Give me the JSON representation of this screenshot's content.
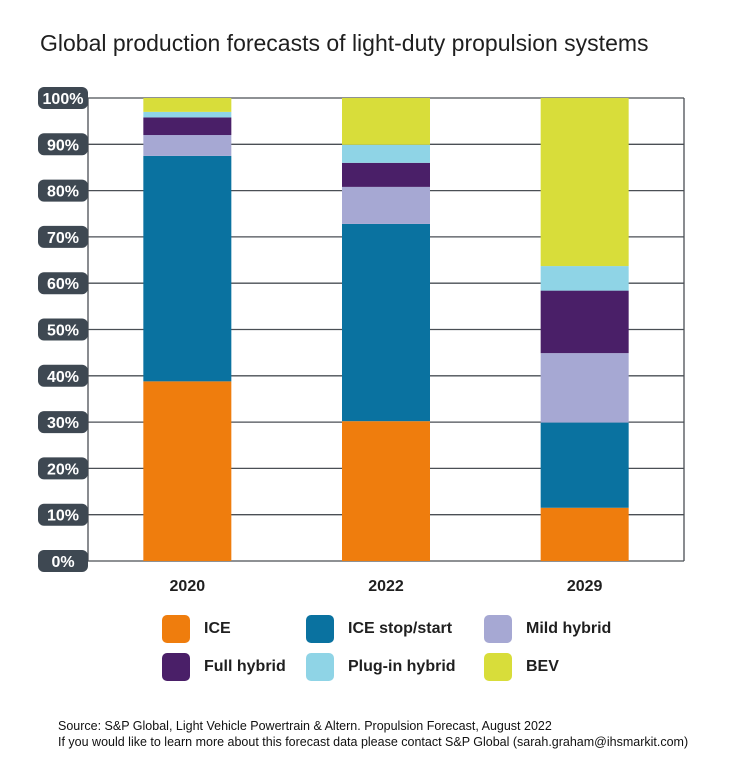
{
  "title": "Global production forecasts of light-duty propulsion systems",
  "source_line1": "Source: S&P Global, Light Vehicle Powertrain & Altern. Propulsion Forecast, August 2022",
  "source_line2": "If you would like to learn more about this forecast data please contact S&P Global (sarah.graham@ihsmarkit.com)",
  "chart_data": {
    "type": "bar",
    "stacked": true,
    "title": "Global production forecasts of light-duty propulsion systems",
    "categories": [
      "2020",
      "2022",
      "2029"
    ],
    "yticks": [
      "0%",
      "10%",
      "20%",
      "30%",
      "40%",
      "50%",
      "60%",
      "70%",
      "80%",
      "90%",
      "100%"
    ],
    "ylim": [
      0,
      100
    ],
    "grid": true,
    "legend_position": "bottom",
    "series": [
      {
        "name": "ICE",
        "color": "#ef7d0d",
        "values": [
          38.8,
          30.2,
          11.5
        ]
      },
      {
        "name": "ICE stop/start",
        "color": "#0a72a0",
        "values": [
          48.7,
          42.6,
          18.4
        ]
      },
      {
        "name": "Mild hybrid",
        "color": "#a6a8d3",
        "values": [
          4.5,
          8.0,
          15.0
        ]
      },
      {
        "name": "Full hybrid",
        "color": "#4a1f68",
        "values": [
          3.8,
          5.2,
          13.5
        ]
      },
      {
        "name": "Plug-in hybrid",
        "color": "#8fd4e6",
        "values": [
          1.2,
          3.9,
          5.3
        ]
      },
      {
        "name": "BEV",
        "color": "#d8dd3a",
        "values": [
          3.0,
          10.1,
          36.3
        ]
      }
    ]
  }
}
